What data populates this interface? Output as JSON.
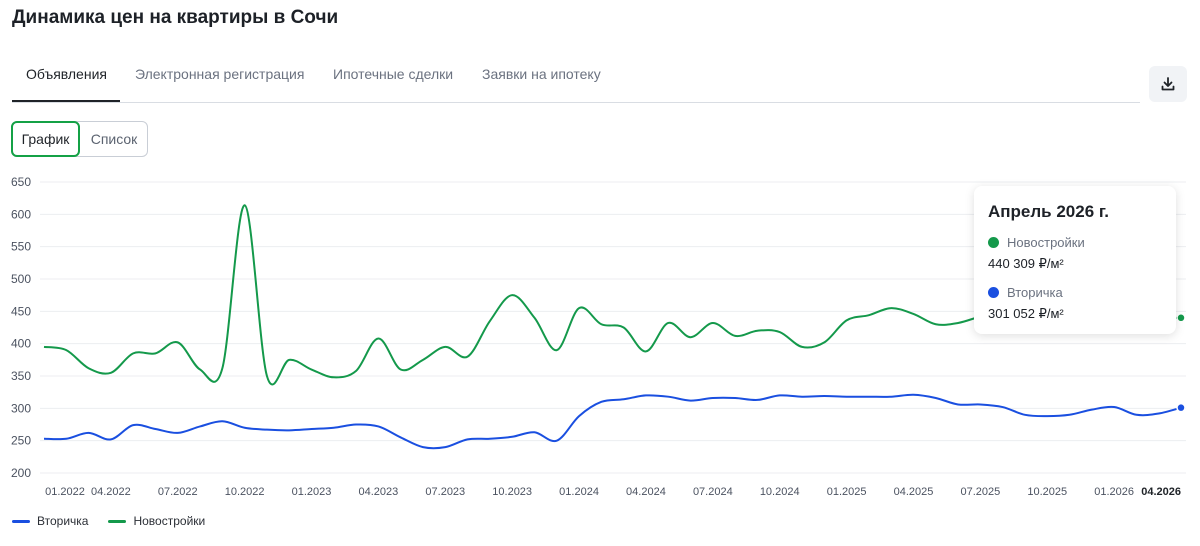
{
  "page": {
    "title": "Динамика цен на квартиры в Сочи"
  },
  "tabs": [
    {
      "label": "Объявления",
      "active": true
    },
    {
      "label": "Электронная регистрация",
      "active": false
    },
    {
      "label": "Ипотечные сделки",
      "active": false
    },
    {
      "label": "Заявки на ипотеку",
      "active": false
    }
  ],
  "toolbar": {
    "download_icon": "download-icon"
  },
  "view_toggle": {
    "chart_label": "График",
    "list_label": "Список",
    "selected": "График"
  },
  "colors": {
    "accent": "#14a146",
    "new": "#14994b",
    "secondary": "#1a4fe0"
  },
  "tooltip": {
    "title": "Апрель 2026 г.",
    "series": [
      {
        "name": "Новостройки",
        "value": "440 309 ₽/м²",
        "color": "#14994b"
      },
      {
        "name": "Вторичка",
        "value": "301 052 ₽/м²",
        "color": "#1a4fe0"
      }
    ]
  },
  "legend": [
    {
      "name": "Вторичка",
      "color": "#1a4fe0"
    },
    {
      "name": "Новостройки",
      "color": "#14994b"
    }
  ],
  "chart_data": {
    "type": "line",
    "ylim": [
      200,
      650
    ],
    "yticks": [
      200,
      250,
      300,
      350,
      400,
      450,
      500,
      550,
      600,
      650
    ],
    "grid": true,
    "legend_position": "bottom-left",
    "xtick_labels": [
      "01.2022",
      "04.2022",
      "07.2022",
      "10.2022",
      "01.2023",
      "04.2023",
      "07.2023",
      "10.2023",
      "01.2024",
      "04.2024",
      "07.2024",
      "10.2024",
      "01.2025",
      "04.2025",
      "07.2025",
      "10.2025",
      "01.2026",
      "04.2026"
    ],
    "active_xtick": "04.2026",
    "x": [
      "01.2022",
      "02.2022",
      "03.2022",
      "04.2022",
      "05.2022",
      "06.2022",
      "07.2022",
      "08.2022",
      "09.2022",
      "10.2022",
      "11.2022",
      "12.2022",
      "01.2023",
      "02.2023",
      "03.2023",
      "04.2023",
      "05.2023",
      "06.2023",
      "07.2023",
      "08.2023",
      "09.2023",
      "10.2023",
      "11.2023",
      "12.2023",
      "01.2024",
      "02.2024",
      "03.2024",
      "04.2024",
      "05.2024",
      "06.2024",
      "07.2024",
      "08.2024",
      "09.2024",
      "10.2024",
      "11.2024",
      "12.2024",
      "01.2025",
      "02.2025",
      "03.2025",
      "04.2025",
      "05.2025",
      "06.2025",
      "07.2025",
      "08.2025",
      "09.2025",
      "10.2025",
      "11.2025",
      "12.2025",
      "01.2026",
      "02.2026",
      "03.2026",
      "04.2026"
    ],
    "series": [
      {
        "name": "Новостройки",
        "color": "#14994b",
        "values": [
          395,
          390,
          362,
          355,
          385,
          385,
          402,
          360,
          362,
          614,
          350,
          375,
          360,
          348,
          358,
          408,
          360,
          375,
          395,
          380,
          435,
          475,
          440,
          390,
          455,
          430,
          425,
          388,
          432,
          410,
          432,
          412,
          420,
          418,
          395,
          402,
          436,
          444,
          455,
          446,
          430,
          432,
          442,
          450,
          438,
          440,
          444,
          446,
          442,
          445,
          440,
          440
        ]
      },
      {
        "name": "Вторичка",
        "color": "#1a4fe0",
        "values": [
          253,
          253,
          262,
          252,
          274,
          268,
          262,
          272,
          280,
          270,
          267,
          266,
          268,
          270,
          275,
          272,
          255,
          240,
          240,
          252,
          253,
          256,
          263,
          250,
          288,
          310,
          314,
          320,
          318,
          312,
          316,
          316,
          313,
          320,
          318,
          319,
          318,
          318,
          318,
          321,
          316,
          306,
          306,
          302,
          290,
          288,
          290,
          298,
          302,
          290,
          292,
          301
        ]
      }
    ],
    "highlight_index": 51
  }
}
